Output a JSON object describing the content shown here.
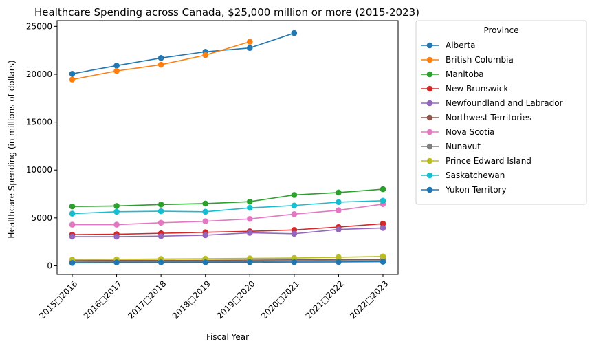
{
  "chart_data": {
    "type": "line",
    "title": "Healthcare Spending across Canada, $25,000 million or more (2015-2023)",
    "xlabel": "Fiscal Year",
    "ylabel": "Healthcare Spending (in millions of dollars)",
    "categories": [
      "2015□2016",
      "2016□2017",
      "2017□2018",
      "2018□2019",
      "2019□2020",
      "2020□2021",
      "2021□2022",
      "2022□2023"
    ],
    "ylim": [
      -900,
      25600
    ],
    "yticks": [
      0,
      5000,
      10000,
      15000,
      20000,
      25000
    ],
    "grid": false,
    "legend": {
      "title": "Province",
      "placement": "outside-right"
    },
    "series": [
      {
        "name": "Alberta",
        "color": "#1f77b4",
        "values": [
          20050,
          20900,
          21700,
          22350,
          22750,
          24300,
          null,
          null
        ]
      },
      {
        "name": "British Columbia",
        "color": "#ff7f0e",
        "values": [
          19450,
          20350,
          21000,
          22000,
          23400,
          null,
          null,
          null
        ]
      },
      {
        "name": "Manitoba",
        "color": "#2ca02c",
        "values": [
          6200,
          6250,
          6400,
          6500,
          6700,
          7400,
          7650,
          8000
        ]
      },
      {
        "name": "New Brunswick",
        "color": "#d62728",
        "values": [
          3250,
          3300,
          3400,
          3500,
          3600,
          3750,
          4050,
          4400
        ]
      },
      {
        "name": "Newfoundland and Labrador",
        "color": "#9467bd",
        "values": [
          3050,
          3050,
          3100,
          3200,
          3450,
          3350,
          3800,
          3950
        ]
      },
      {
        "name": "Northwest Territories",
        "color": "#8c564b",
        "values": [
          550,
          560,
          570,
          580,
          600,
          620,
          640,
          660
        ]
      },
      {
        "name": "Nova Scotia",
        "color": "#e377c2",
        "values": [
          4300,
          4300,
          4500,
          4650,
          4900,
          5400,
          5800,
          6450
        ]
      },
      {
        "name": "Nunavut",
        "color": "#7f7f7f",
        "values": [
          400,
          420,
          450,
          460,
          480,
          500,
          520,
          540
        ]
      },
      {
        "name": "Prince Edward Island",
        "color": "#bcbd22",
        "values": [
          650,
          680,
          720,
          750,
          780,
          820,
          900,
          980
        ]
      },
      {
        "name": "Saskatchewan",
        "color": "#17becf",
        "values": [
          5450,
          5650,
          5700,
          5650,
          6050,
          6300,
          6650,
          6800
        ]
      },
      {
        "name": "Yukon Territory",
        "color": "#1f77b4",
        "values": [
          300,
          350,
          360,
          370,
          380,
          390,
          400,
          420
        ]
      }
    ]
  }
}
